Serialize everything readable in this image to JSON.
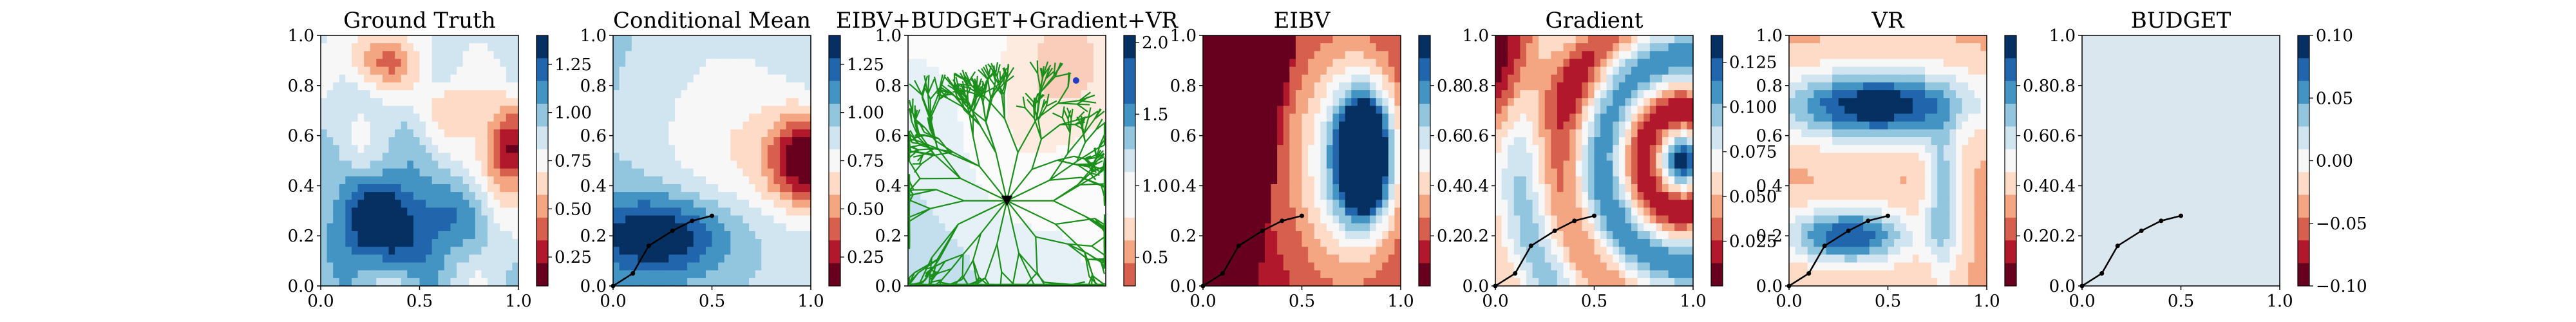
{
  "figure": {
    "panels": [
      {
        "key": "ground_truth",
        "title": "Ground Truth"
      },
      {
        "key": "conditional_mean",
        "title": "Conditional Mean"
      },
      {
        "key": "eibv_budget_gradient_vr",
        "title": "EIBV+BUDGET+Gradient+VR"
      },
      {
        "key": "eibv",
        "title": "EIBV"
      },
      {
        "key": "gradient",
        "title": "Gradient"
      },
      {
        "key": "vr",
        "title": "VR"
      },
      {
        "key": "budget",
        "title": "BUDGET"
      }
    ]
  },
  "chart_data": [
    {
      "type": "heatmap",
      "title": "Ground Truth",
      "xlim": [
        0,
        1
      ],
      "ylim": [
        0,
        1
      ],
      "x_ticks": [
        "0.0",
        "0.5",
        "1.0"
      ],
      "y_ticks": [
        "0.0",
        "0.2",
        "0.4",
        "0.6",
        "0.8",
        "1.0"
      ],
      "colorbar_ticks": [
        "0.25",
        "0.50",
        "0.75",
        "1.00",
        "1.25"
      ],
      "colorbar_range": [
        0.1,
        1.4
      ],
      "colormap": "RdBu"
    },
    {
      "type": "heatmap",
      "title": "Conditional Mean",
      "xlim": [
        0,
        1
      ],
      "ylim": [
        0,
        1
      ],
      "x_ticks": [
        "0.0",
        "0.5",
        "1.0"
      ],
      "y_ticks": [
        "0.0",
        "0.2",
        "0.4",
        "0.6",
        "0.8",
        "1.0"
      ],
      "colorbar_ticks": [
        "0.25",
        "0.50",
        "0.75",
        "1.00",
        "1.25"
      ],
      "colorbar_range": [
        0.1,
        1.4
      ],
      "colormap": "RdBu",
      "path": [
        [
          0.0,
          0.0
        ],
        [
          0.1,
          0.05
        ],
        [
          0.18,
          0.16
        ],
        [
          0.3,
          0.22
        ],
        [
          0.4,
          0.26
        ],
        [
          0.5,
          0.28
        ]
      ]
    },
    {
      "type": "heatmap",
      "title": "EIBV+BUDGET+Gradient+VR",
      "xlim": [
        0,
        1
      ],
      "ylim": [
        0,
        1
      ],
      "x_ticks": [],
      "y_ticks": [
        "0.0",
        "0.2",
        "0.4",
        "0.6",
        "0.8",
        "1.0"
      ],
      "colorbar_ticks": [
        "0.5",
        "1.0",
        "1.5",
        "2.0"
      ],
      "colorbar_range": [
        0.3,
        2.05
      ],
      "colormap": "RdBu",
      "current_location": [
        0.5,
        0.34
      ],
      "target_location": [
        0.85,
        0.82
      ]
    },
    {
      "type": "heatmap",
      "title": "EIBV",
      "xlim": [
        0,
        1
      ],
      "ylim": [
        0,
        1
      ],
      "x_ticks": [
        "0.0",
        "0.5",
        "1.0"
      ],
      "y_ticks": [
        "0.0",
        "0.2",
        "0.4",
        "0.6",
        "0.8",
        "1.0"
      ],
      "colorbar_ticks": [
        "0.2",
        "0.4",
        "0.6",
        "0.8"
      ],
      "colorbar_range": [
        0.0,
        1.0
      ],
      "colormap": "RdBu",
      "path": [
        [
          0.0,
          0.0
        ],
        [
          0.1,
          0.05
        ],
        [
          0.18,
          0.16
        ],
        [
          0.3,
          0.22
        ],
        [
          0.4,
          0.26
        ],
        [
          0.5,
          0.28
        ]
      ]
    },
    {
      "type": "heatmap",
      "title": "Gradient",
      "xlim": [
        0,
        1
      ],
      "ylim": [
        0,
        1
      ],
      "x_ticks": [
        "0.0",
        "0.5",
        "1.0"
      ],
      "y_ticks": [
        "0.0",
        "0.2",
        "0.4",
        "0.6",
        "0.8",
        "1.0"
      ],
      "colorbar_ticks": [
        "0.025",
        "0.050",
        "0.075",
        "0.100",
        "0.125"
      ],
      "colorbar_range": [
        0.0,
        0.14
      ],
      "colormap": "RdBu",
      "path": [
        [
          0.0,
          0.0
        ],
        [
          0.1,
          0.05
        ],
        [
          0.18,
          0.16
        ],
        [
          0.3,
          0.22
        ],
        [
          0.4,
          0.26
        ],
        [
          0.5,
          0.28
        ]
      ]
    },
    {
      "type": "heatmap",
      "title": "VR",
      "xlim": [
        0,
        1
      ],
      "ylim": [
        0,
        1
      ],
      "x_ticks": [
        "0.0",
        "0.5",
        "1.0"
      ],
      "y_ticks": [
        "0.0",
        "0.2",
        "0.4",
        "0.6",
        "0.8",
        "1.0"
      ],
      "colorbar_ticks": [
        "0.2",
        "0.4",
        "0.6",
        "0.8"
      ],
      "colorbar_range": [
        0.0,
        1.0
      ],
      "colormap": "RdBu",
      "path": [
        [
          0.0,
          0.0
        ],
        [
          0.1,
          0.05
        ],
        [
          0.18,
          0.16
        ],
        [
          0.3,
          0.22
        ],
        [
          0.4,
          0.26
        ],
        [
          0.5,
          0.28
        ]
      ]
    },
    {
      "type": "heatmap",
      "title": "BUDGET",
      "xlim": [
        0,
        1
      ],
      "ylim": [
        0,
        1
      ],
      "x_ticks": [
        "0.0",
        "0.5",
        "1.0"
      ],
      "y_ticks": [
        "0.0",
        "0.2",
        "0.4",
        "0.6",
        "0.8",
        "1.0"
      ],
      "colorbar_ticks": [
        "−0.10",
        "−0.05",
        "0.00",
        "0.05",
        "0.10"
      ],
      "colorbar_range": [
        -0.1,
        0.1
      ],
      "colormap": "RdBu",
      "path": [
        [
          0.0,
          0.0
        ],
        [
          0.1,
          0.05
        ],
        [
          0.18,
          0.16
        ],
        [
          0.3,
          0.22
        ],
        [
          0.4,
          0.26
        ],
        [
          0.5,
          0.28
        ]
      ]
    }
  ]
}
